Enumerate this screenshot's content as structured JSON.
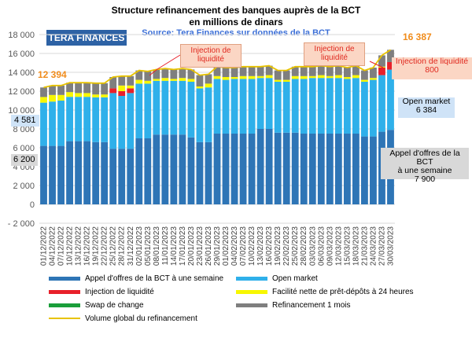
{
  "header": {
    "title_line1": "Structure refinancement des banques auprès de la BCT",
    "title_line2": "en millions de dinars",
    "source": "Source: Tera Finances sur données de la BCT",
    "brand": "TERA FINANCES"
  },
  "annotations": {
    "first_total": "12 394",
    "last_total": "16 387",
    "left_open_market": "4 581",
    "left_appel": "6 200",
    "injection_box1": "Injection de liquidité",
    "injection_box2": "Injection de liquidité",
    "injection_right_label": "Injection de liquidité",
    "injection_right_value": "800",
    "open_market_label": "Open market",
    "open_market_value": "6 384",
    "appel_line1": "Appel d'offres de la BCT",
    "appel_line2": "à une semaine",
    "appel_value": "7 900"
  },
  "legend": {
    "appel": "Appel d'offres de la BCT à une semaine",
    "open_market": "Open market",
    "injection": "Injection de liquidité",
    "facilite": "Facilité nette de prêt-dépôts à 24 heures",
    "swap": "Swap de change",
    "refinancement": "Refinancement 1 mois",
    "volume": "Volume global du refinancement"
  },
  "colors": {
    "appel": "#2e75b6",
    "open_market": "#2fb0ea",
    "injection": "#e8202a",
    "facilite": "#f7f700",
    "swap": "#1a9e3a",
    "refinancement": "#7f7f7f",
    "volume": "#e8c300",
    "brand": "#2d62a5",
    "accent_orange": "#f08c1c"
  },
  "chart_data": {
    "type": "bar",
    "stacked": true,
    "ylim": [
      -2000,
      18000
    ],
    "yticks": [
      "- 2 000",
      "0",
      "2 000",
      "4 000",
      "6 000",
      "8 000",
      "10 000",
      "12 000",
      "14 000",
      "16 000",
      "18 000"
    ],
    "grid": true,
    "xtick_labels": [
      "01/12/2022",
      "04/12/2022",
      "07/12/2022",
      "10/12/2022",
      "13/12/2022",
      "16/12/2022",
      "19/12/2022",
      "22/12/2022",
      "25/12/2022",
      "28/12/2022",
      "31/12/2022",
      "02/01/2023",
      "05/01/2023",
      "08/01/2023",
      "11/01/2023",
      "14/01/2023",
      "17/01/2023",
      "20/01/2023",
      "23/01/2023",
      "26/01/2023",
      "29/01/2023",
      "01/02/2023",
      "04/02/2023",
      "07/02/2023",
      "10/02/2023",
      "13/02/2023",
      "16/02/2023",
      "19/02/2023",
      "22/02/2023",
      "25/02/2023",
      "28/02/2023",
      "03/03/2023",
      "06/03/2023",
      "09/03/2023",
      "12/03/2023",
      "15/03/2023",
      "18/03/2023",
      "21/03/2023",
      "24/03/2023",
      "27/03/2023",
      "30/03/2023"
    ],
    "series": [
      {
        "name": "Appel d'offres de la BCT à une semaine",
        "values": [
          6200,
          6200,
          6200,
          6700,
          6700,
          6700,
          6600,
          6600,
          5900,
          5900,
          5900,
          7000,
          7000,
          7400,
          7400,
          7400,
          7400,
          7100,
          6600,
          6600,
          7500,
          7500,
          7500,
          7500,
          7500,
          8000,
          8000,
          7600,
          7600,
          7600,
          7500,
          7500,
          7500,
          7500,
          7500,
          7500,
          7500,
          7200,
          7200,
          7700,
          7900
        ]
      },
      {
        "name": "Open market",
        "values": [
          4581,
          4700,
          4800,
          4700,
          4700,
          4700,
          4750,
          4750,
          5900,
          5600,
          5900,
          5800,
          5800,
          5700,
          5700,
          5700,
          5700,
          5900,
          5700,
          5800,
          5800,
          5700,
          5800,
          5800,
          5800,
          5400,
          5400,
          5400,
          5400,
          5700,
          5800,
          5900,
          5900,
          5900,
          5900,
          5800,
          5900,
          5800,
          6000,
          6000,
          6384
        ]
      },
      {
        "name": "Injection de liquidité",
        "values": [
          0,
          0,
          0,
          0,
          0,
          0,
          0,
          0,
          500,
          500,
          500,
          0,
          0,
          0,
          0,
          0,
          0,
          0,
          0,
          0,
          0,
          0,
          0,
          0,
          0,
          0,
          0,
          0,
          0,
          0,
          0,
          0,
          0,
          0,
          0,
          0,
          0,
          0,
          0,
          800,
          800
        ]
      },
      {
        "name": "Facilité nette de prêt-dépôts à 24 heures",
        "values": [
          600,
          700,
          600,
          500,
          400,
          400,
          300,
          300,
          0,
          600,
          300,
          400,
          300,
          200,
          300,
          200,
          300,
          300,
          200,
          400,
          300,
          300,
          200,
          300,
          300,
          200,
          300,
          200,
          200,
          300,
          300,
          200,
          300,
          200,
          300,
          200,
          300,
          200,
          200,
          100,
          0
        ]
      },
      {
        "name": "Swap de change",
        "values": [
          0,
          0,
          0,
          0,
          0,
          0,
          0,
          0,
          0,
          0,
          0,
          0,
          0,
          0,
          0,
          0,
          0,
          0,
          0,
          0,
          0,
          0,
          0,
          0,
          0,
          0,
          0,
          0,
          0,
          0,
          0,
          0,
          0,
          0,
          0,
          0,
          0,
          0,
          0,
          0,
          0
        ]
      },
      {
        "name": "Refinancement 1 mois",
        "values": [
          1013,
          1000,
          1000,
          1000,
          1100,
          1100,
          1200,
          1200,
          1200,
          1000,
          1000,
          1000,
          1000,
          1000,
          1000,
          1000,
          1000,
          1000,
          1200,
          1000,
          1000,
          1000,
          1000,
          1000,
          1000,
          1000,
          1000,
          1000,
          1000,
          1000,
          1000,
          1000,
          1000,
          1000,
          1000,
          1000,
          1000,
          1000,
          1100,
          1200,
          1303
        ]
      }
    ],
    "volume_line": {
      "name": "Volume global du refinancement",
      "values": [
        12394,
        12600,
        12600,
        12900,
        12900,
        12900,
        12850,
        12850,
        13500,
        13600,
        13600,
        14200,
        14100,
        14300,
        14400,
        14300,
        14400,
        14300,
        13700,
        13800,
        14600,
        14500,
        14500,
        14600,
        14600,
        14600,
        14700,
        14200,
        14200,
        14600,
        14600,
        14600,
        14700,
        14600,
        14700,
        14500,
        14700,
        14200,
        14500,
        15800,
        16387
      ]
    }
  }
}
